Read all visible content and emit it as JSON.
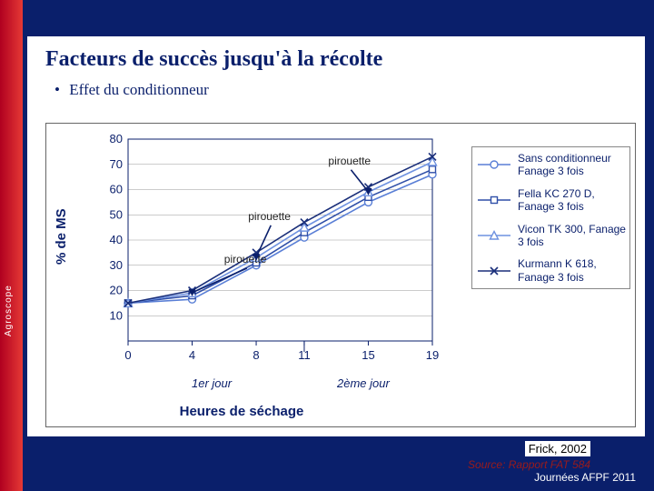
{
  "slide": {
    "title": "Facteurs de succès jusqu'à la récolte",
    "bullet": "Effet du conditionneur",
    "brand": "Agroscope",
    "footer": "Journées AFPF 2011",
    "citation": "Frick, 2002",
    "source": "Source: Rapport FAT 584"
  },
  "chart": {
    "type": "line",
    "ylabel": "% de MS",
    "xlabel": "Heures de séchage",
    "xlim": [
      0,
      19
    ],
    "ylim": [
      0,
      80
    ],
    "xticks": [
      0,
      4,
      8,
      11,
      15,
      19
    ],
    "yticks": [
      10,
      20,
      30,
      40,
      50,
      60,
      70,
      80
    ],
    "day1_label": "1er jour",
    "day2_label": "2ème jour",
    "grid_color": "#999999",
    "axis_color": "#0a1f6b",
    "background_color": "#ffffff",
    "annotations": [
      {
        "text": "pirouette",
        "point": [
          4,
          17
        ],
        "label_at": [
          6,
          31
        ]
      },
      {
        "text": "pirouette",
        "point": [
          8,
          31
        ],
        "label_at": [
          7.5,
          48
        ]
      },
      {
        "text": "pirouette",
        "point": [
          15,
          57
        ],
        "label_at": [
          12.5,
          70
        ]
      }
    ],
    "arrow_color": "#0a1f6b",
    "series": [
      {
        "name": "Sans conditionneur Fanage 3 fois",
        "marker": "circle",
        "color": "#5a7fd6",
        "data": [
          [
            0,
            15
          ],
          [
            4,
            16.5
          ],
          [
            8,
            30
          ],
          [
            11,
            41
          ],
          [
            15,
            55
          ],
          [
            19,
            66
          ]
        ]
      },
      {
        "name": "Fella KC 270 D, Fanage 3 fois",
        "marker": "square",
        "color": "#2f4fa8",
        "data": [
          [
            0,
            15
          ],
          [
            4,
            18
          ],
          [
            8,
            31
          ],
          [
            11,
            43
          ],
          [
            15,
            57
          ],
          [
            19,
            68
          ]
        ]
      },
      {
        "name": "Vicon TK 300, Fanage 3 fois",
        "marker": "triangle",
        "color": "#6f92e0",
        "data": [
          [
            0,
            15
          ],
          [
            4,
            19
          ],
          [
            8,
            33
          ],
          [
            11,
            45
          ],
          [
            15,
            59
          ],
          [
            19,
            71
          ]
        ]
      },
      {
        "name": "Kurmann K 618, Fanage 3 fois",
        "marker": "x",
        "color": "#1a2f7a",
        "data": [
          [
            0,
            15
          ],
          [
            4,
            20
          ],
          [
            8,
            35
          ],
          [
            11,
            47
          ],
          [
            15,
            61
          ],
          [
            19,
            73
          ]
        ]
      }
    ]
  }
}
